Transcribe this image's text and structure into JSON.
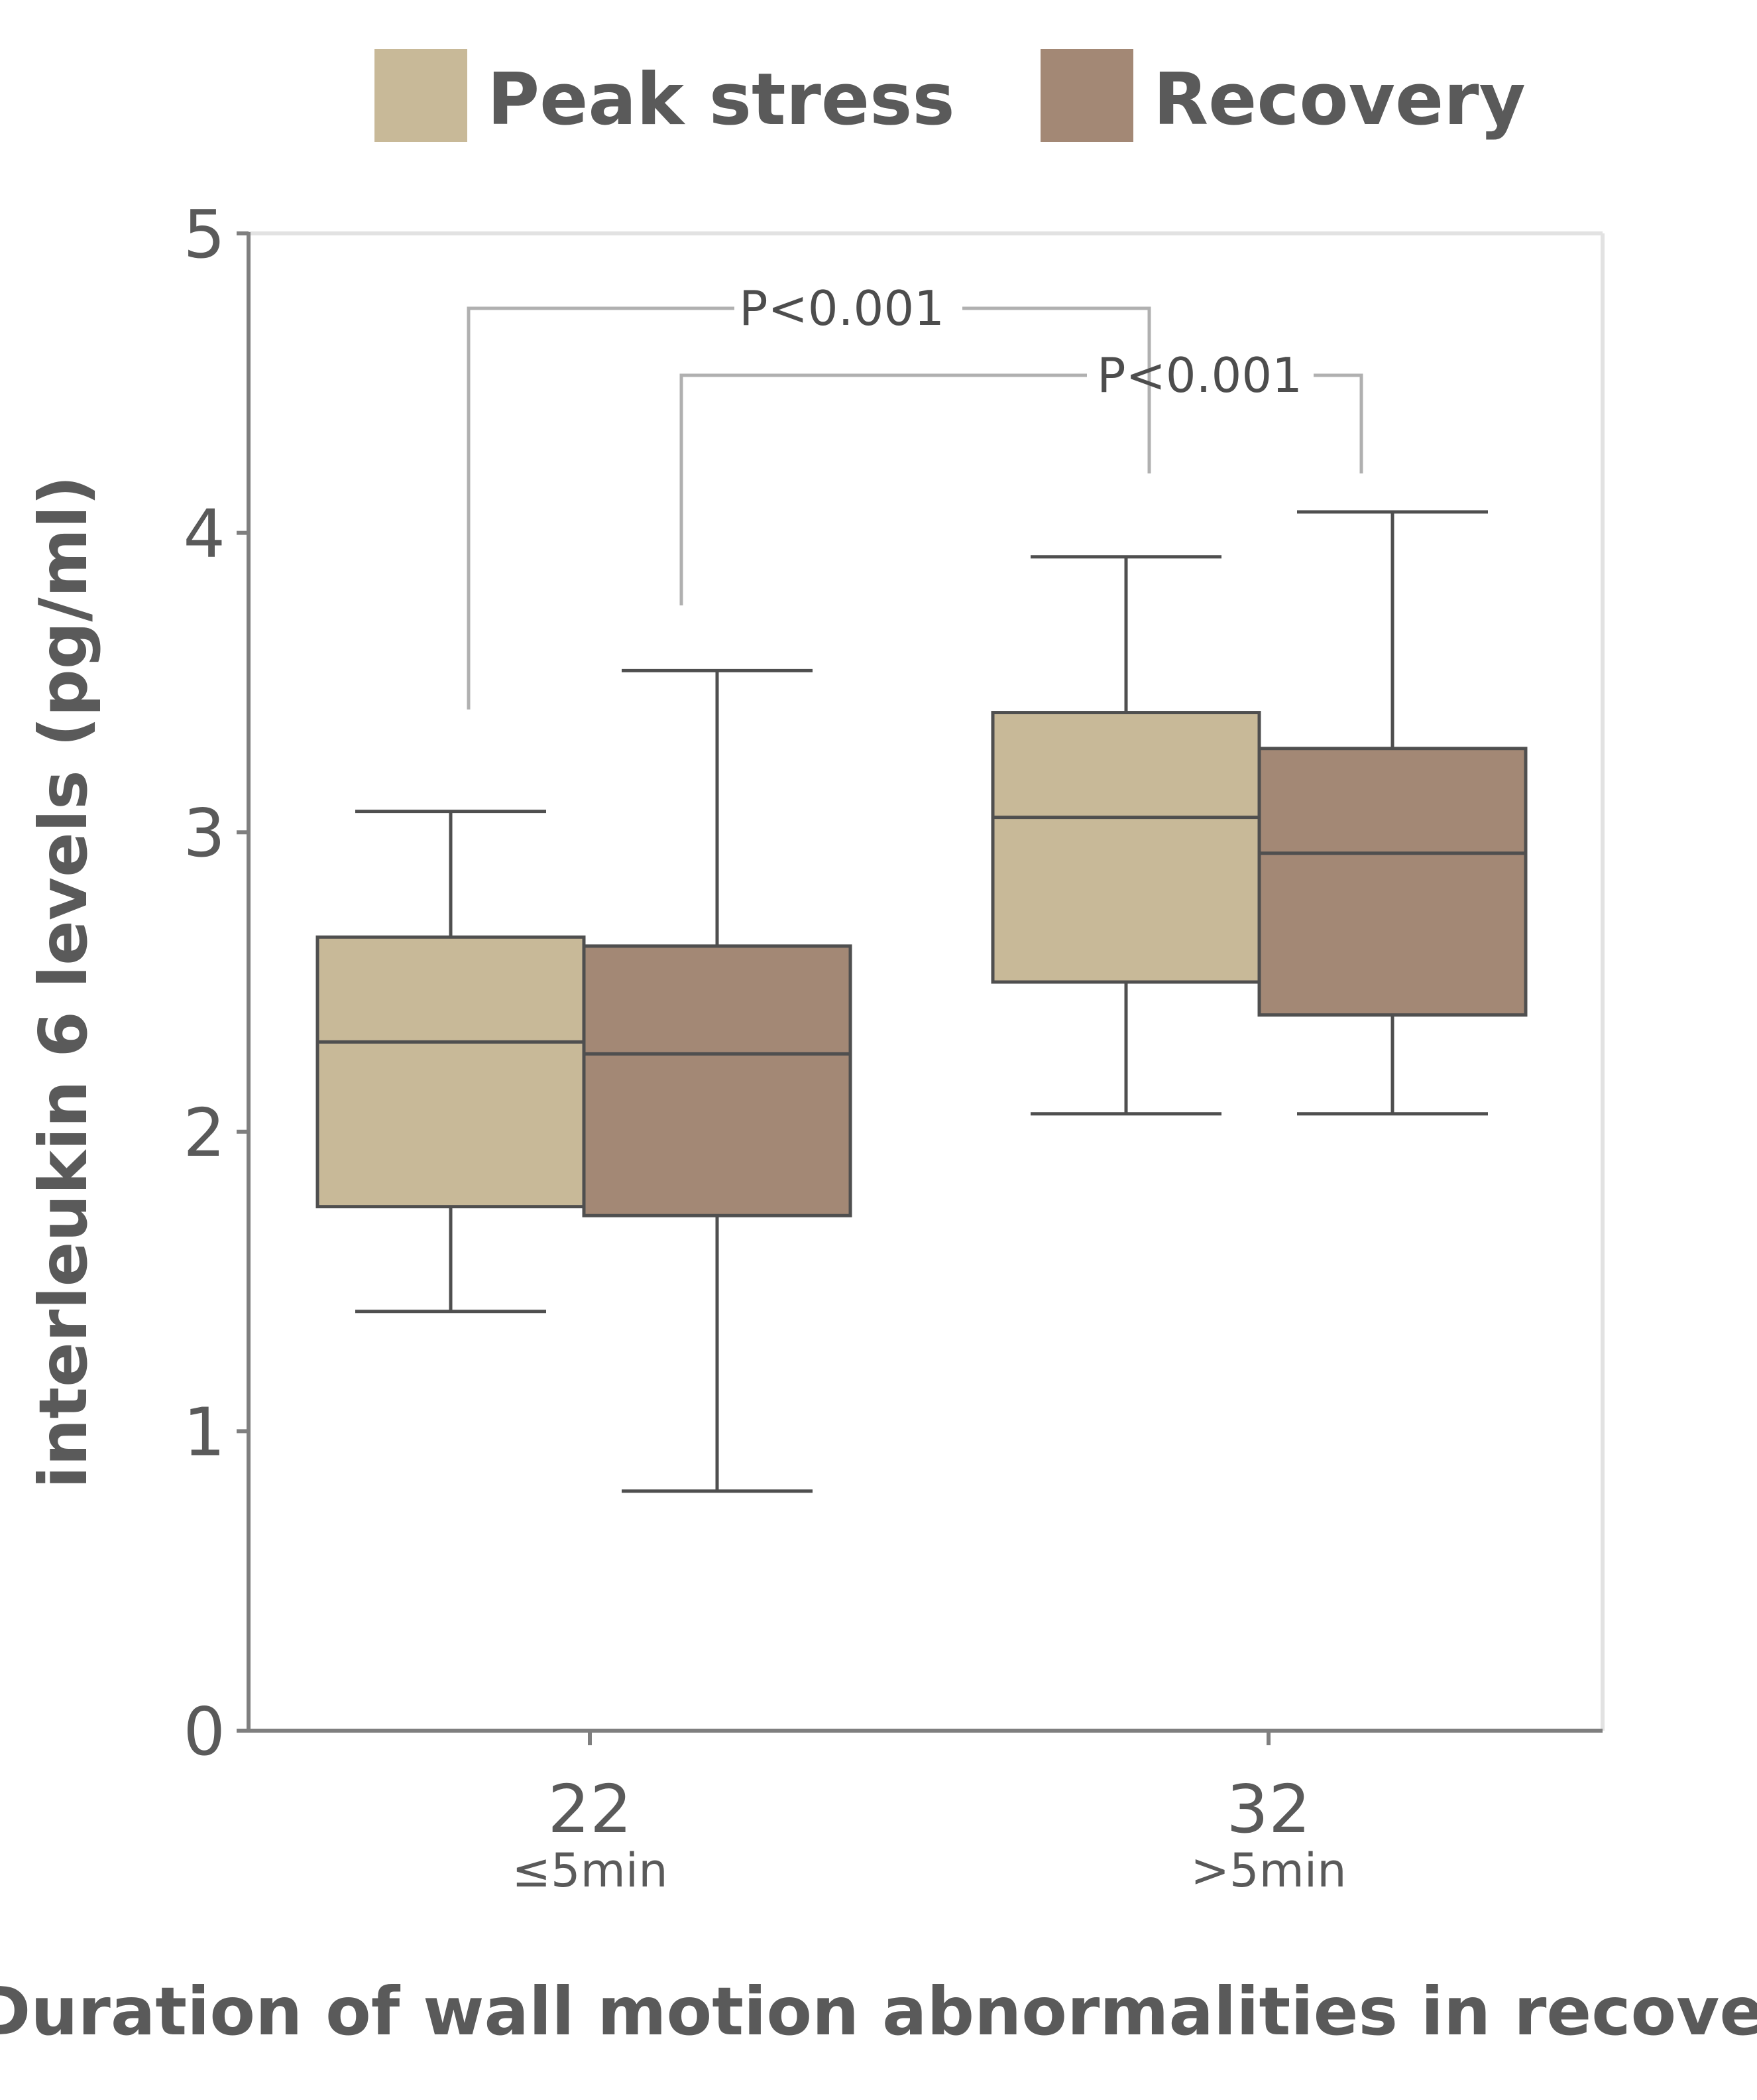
{
  "chart_data": {
    "type": "box",
    "xlabel": "Duration of wall motion abnormalities in recovery",
    "ylabel": "interleukin 6 levels (pg/ml)",
    "ylim": [
      0,
      5
    ],
    "yticks": [
      "0",
      "1",
      "2",
      "3",
      "4",
      "5"
    ],
    "grid": false,
    "legend_position": "top",
    "categories": [
      {
        "label": "22",
        "sublabel": "≤5min"
      },
      {
        "label": "32",
        "sublabel": ">5min"
      }
    ],
    "series": [
      {
        "name": "Peak stress",
        "color": "#c8b998",
        "boxes": [
          {
            "whisker_low": 1.4,
            "q1": 1.75,
            "median": 2.3,
            "q3": 2.65,
            "whisker_high": 3.07
          },
          {
            "whisker_low": 2.06,
            "q1": 2.5,
            "median": 3.05,
            "q3": 3.4,
            "whisker_high": 3.92
          }
        ]
      },
      {
        "name": "Recovery",
        "color": "#a38875",
        "boxes": [
          {
            "whisker_low": 0.8,
            "q1": 1.72,
            "median": 2.26,
            "q3": 2.62,
            "whisker_high": 3.54
          },
          {
            "whisker_low": 2.06,
            "q1": 2.39,
            "median": 2.93,
            "q3": 3.28,
            "whisker_high": 4.07
          }
        ]
      }
    ],
    "annotations": [
      {
        "text": "P<0.001",
        "compares": "Peak stress 22 vs Peak stress 32"
      },
      {
        "text": "P<0.001",
        "compares": "Recovery 22 vs Recovery 32"
      }
    ]
  }
}
